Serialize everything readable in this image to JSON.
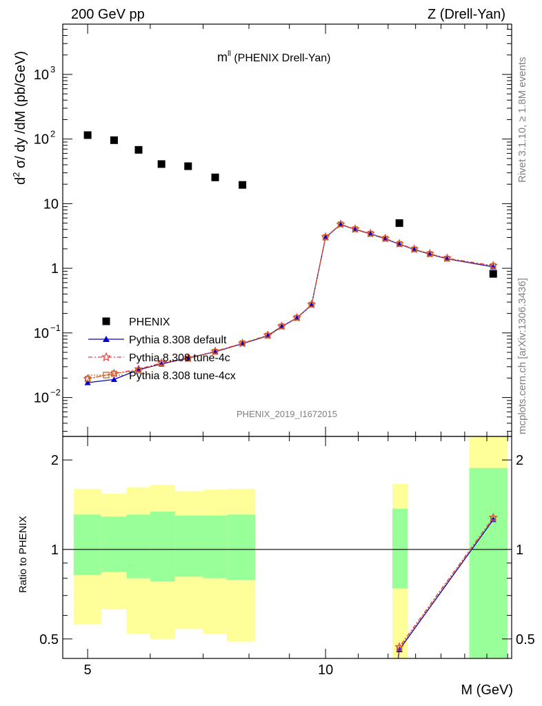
{
  "header": {
    "left": "200 GeV pp",
    "right": "Z (Drell-Yan)"
  },
  "side": {
    "rivet": "Rivet 3.1.10, ≥ 1.8M events",
    "mcplots": "mcplots.cern.ch [arXiv:1306.3436]"
  },
  "plot_title": {
    "main": "m",
    "sup": "ll",
    "rest": " (PHENIX Drell-Yan)"
  },
  "analysis_id": "PHENIX_2019_I1672015",
  "legend": {
    "items": [
      {
        "label": "PHENIX",
        "marker": "square",
        "color": "#000000"
      },
      {
        "label": "Pythia 8.308 default",
        "marker": "triangle",
        "color": "#0000cc"
      },
      {
        "label": "Pythia 8.308 tune-4c",
        "marker": "star",
        "color": "#e84040"
      },
      {
        "label": "Pythia 8.308 tune-4cx",
        "marker": "open-square",
        "color": "#c8641e"
      }
    ]
  },
  "chart_data": [
    {
      "type": "scatter",
      "log_x": true,
      "log_y": true,
      "xlim": [
        4.65,
        17.2
      ],
      "ylim": [
        0.0025,
        6000
      ],
      "ylabel_parts": {
        "pre": "d",
        "sup": "2",
        "post": " σ/ dy /dM (pb/GeV)"
      },
      "y_tick_labels": [
        {
          "value": 0.01,
          "base": "10",
          "exp": "−2"
        },
        {
          "value": 0.1,
          "base": "10",
          "exp": "−1"
        },
        {
          "value": 1,
          "base": "1",
          "exp": ""
        },
        {
          "value": 10,
          "base": "10",
          "exp": ""
        },
        {
          "value": 100,
          "base": "10",
          "exp": "2"
        },
        {
          "value": 1000,
          "base": "10",
          "exp": "3"
        }
      ],
      "series": [
        {
          "name": "PHENIX",
          "x": [
            5.0,
            5.4,
            5.8,
            6.2,
            6.7,
            7.25,
            7.85,
            12.4,
            16.3
          ],
          "y": [
            115,
            96,
            68,
            41,
            38,
            25.5,
            19.5,
            5.0,
            0.82
          ]
        },
        {
          "name": "Pythia 8.308 default",
          "x": [
            5.0,
            5.4,
            5.8,
            6.2,
            6.7,
            7.25,
            7.85,
            8.45,
            8.8,
            9.2,
            9.6,
            10.0,
            10.45,
            10.9,
            11.4,
            11.9,
            12.4,
            12.95,
            13.55,
            14.25,
            16.3
          ],
          "y": [
            0.017,
            0.019,
            0.027,
            0.033,
            0.041,
            0.051,
            0.068,
            0.09,
            0.125,
            0.17,
            0.27,
            3.0,
            4.75,
            4.0,
            3.4,
            2.85,
            2.35,
            1.95,
            1.65,
            1.4,
            1.05
          ]
        },
        {
          "name": "Pythia 8.308 tune-4c",
          "x": [
            5.0,
            5.4,
            5.8,
            6.2,
            6.7,
            7.25,
            7.85,
            8.45,
            8.8,
            9.2,
            9.6,
            10.0,
            10.45,
            10.9,
            11.4,
            11.9,
            12.4,
            12.95,
            13.55,
            14.25,
            16.3
          ],
          "y": [
            0.0195,
            0.0235,
            0.0275,
            0.0345,
            0.0405,
            0.052,
            0.069,
            0.092,
            0.127,
            0.172,
            0.275,
            3.05,
            4.8,
            4.05,
            3.45,
            2.9,
            2.4,
            1.98,
            1.68,
            1.43,
            1.1
          ]
        },
        {
          "name": "Pythia 8.308 tune-4cx",
          "x": [
            5.0,
            5.4,
            5.8,
            6.2,
            6.7,
            7.25,
            7.85,
            8.45,
            8.8,
            9.2,
            9.6,
            10.0,
            10.45,
            10.9,
            11.4,
            11.9,
            12.4,
            12.95,
            13.55,
            14.25,
            16.3
          ],
          "y": [
            0.0195,
            0.0235,
            0.026,
            0.034,
            0.04,
            0.051,
            0.069,
            0.091,
            0.126,
            0.171,
            0.273,
            3.02,
            4.78,
            4.02,
            3.42,
            2.87,
            2.37,
            1.96,
            1.66,
            1.41,
            1.08
          ]
        }
      ]
    },
    {
      "type": "line",
      "log_x": true,
      "log_y": true,
      "xlim": [
        4.65,
        17.2
      ],
      "ylim": [
        0.43,
        2.4
      ],
      "xlabel": "M (GeV)",
      "ylabel": "Ratio to PHENIX",
      "x_tick_labels": [
        {
          "value": 5,
          "label": "5"
        },
        {
          "value": 10,
          "label": "10"
        }
      ],
      "y_tick_labels": [
        {
          "value": 0.5,
          "label": "0.5"
        },
        {
          "value": 1,
          "label": "1"
        },
        {
          "value": 2,
          "label": "2"
        }
      ],
      "reference_line": 1,
      "bands": [
        {
          "x0": 4.8,
          "x1": 5.2,
          "inner": [
            0.82,
            1.31
          ],
          "outer": [
            0.56,
            1.6
          ]
        },
        {
          "x0": 5.2,
          "x1": 5.6,
          "inner": [
            0.84,
            1.29
          ],
          "outer": [
            0.63,
            1.54
          ]
        },
        {
          "x0": 5.6,
          "x1": 6.0,
          "inner": [
            0.8,
            1.31
          ],
          "outer": [
            0.52,
            1.62
          ]
        },
        {
          "x0": 6.0,
          "x1": 6.45,
          "inner": [
            0.78,
            1.34
          ],
          "outer": [
            0.5,
            1.65
          ]
        },
        {
          "x0": 6.45,
          "x1": 7.0,
          "inner": [
            0.81,
            1.3
          ],
          "outer": [
            0.54,
            1.57
          ]
        },
        {
          "x0": 7.0,
          "x1": 7.5,
          "inner": [
            0.8,
            1.3
          ],
          "outer": [
            0.52,
            1.59
          ]
        },
        {
          "x0": 7.5,
          "x1": 8.15,
          "inner": [
            0.79,
            1.31
          ],
          "outer": [
            0.49,
            1.6
          ]
        },
        {
          "x0": 12.15,
          "x1": 12.7,
          "inner": [
            0.74,
            1.37
          ],
          "outer": [
            0.4,
            1.66
          ]
        },
        {
          "x0": 15.2,
          "x1": 17.0,
          "inner": [
            0.4,
            1.88
          ],
          "outer": [
            0.4,
            2.6
          ]
        }
      ],
      "series": [
        {
          "name": "Pythia 8.308 default",
          "x": [
            12.15,
            12.4,
            16.3
          ],
          "y": [
            0.3,
            0.46,
            1.26
          ]
        },
        {
          "name": "Pythia 8.308 tune-4c",
          "x": [
            12.15,
            12.4,
            16.3
          ],
          "y": [
            0.31,
            0.47,
            1.28
          ]
        },
        {
          "name": "Pythia 8.308 tune-4cx",
          "x": [
            12.15,
            12.4,
            16.3
          ],
          "y": [
            0.31,
            0.465,
            1.27
          ]
        }
      ]
    }
  ]
}
